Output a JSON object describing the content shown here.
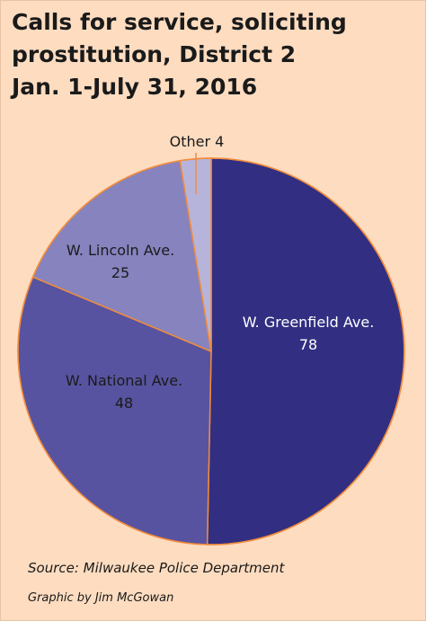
{
  "chart_data": {
    "type": "pie",
    "title": [
      "Calls for service, soliciting",
      "prostitution, District 2",
      "Jan. 1-July 31, 2016"
    ],
    "slices": [
      {
        "label": "W. Greenfield Ave.",
        "value": 78,
        "color": "#322f82"
      },
      {
        "label": "W. National Ave.",
        "value": 48,
        "color": "#5853a0"
      },
      {
        "label": "W. Lincoln Ave.",
        "value": 25,
        "color": "#8683bf"
      },
      {
        "label": "Other",
        "value": 4,
        "color": "#b7b4dc"
      }
    ],
    "start_angle": "12 o'clock",
    "direction": "clockwise",
    "slice_border_color": "#f28c3c"
  },
  "source": "Source: Milwaukee Police Department",
  "credit": "Graphic by Jim McGowan"
}
